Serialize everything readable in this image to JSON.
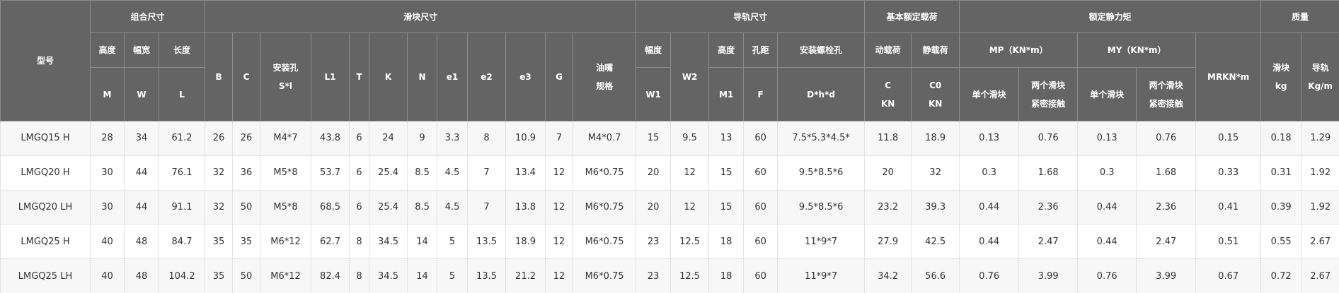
{
  "header": {
    "row1": [
      "型号",
      "组合尺寸",
      "滑块尺寸",
      "导轨尺寸",
      "基本额定载荷",
      "额定静力矩",
      "质量"
    ],
    "row2": [
      "高度",
      "幅宽",
      "长度",
      "B",
      "C",
      "安装孔",
      "S*l",
      "L1",
      "T",
      "K",
      "N",
      "e1",
      "e2",
      "e3",
      "G",
      "油嘴",
      "规格",
      "幅度",
      "W2",
      "高度",
      "孔距",
      "安装螺栓孔",
      "动载荷",
      "静载荷",
      "MP（KN*m）",
      "MY（KN*m）",
      "MRKN*m",
      "滑块",
      "kg",
      "导轨",
      "Kg/m"
    ],
    "row3": [
      "M",
      "W",
      "L",
      "W1",
      "M1",
      "F",
      "D*h*d",
      "C",
      "KN",
      "C0",
      "KN",
      "单个滑块",
      "两个滑块",
      "紧密接触",
      "单个滑块",
      "两个滑块",
      "紧密接触"
    ]
  },
  "table": {
    "rows": [
      [
        "LMGQ15 H",
        "28",
        "34",
        "61.2",
        "26",
        "26",
        "M4*7",
        "43.8",
        "6",
        "24",
        "9",
        "3.3",
        "8",
        "10.9",
        "7",
        "M4*0.7",
        "15",
        "9.5",
        "13",
        "60",
        "7.5*5.3*4.5*",
        "11.8",
        "18.9",
        "0.13",
        "0.76",
        "0.13",
        "0.76",
        "0.15",
        "0.18",
        "1.29"
      ],
      [
        "LMGQ20 H",
        "30",
        "44",
        "76.1",
        "32",
        "36",
        "M5*8",
        "53.7",
        "6",
        "25.4",
        "8.5",
        "4.5",
        "7",
        "13.4",
        "12",
        "M6*0.75",
        "20",
        "12",
        "15",
        "60",
        "9.5*8.5*6",
        "20",
        "32",
        "0.3",
        "1.68",
        "0.3",
        "1.68",
        "0.33",
        "0.31",
        "1.92"
      ],
      [
        "LMGQ20 LH",
        "30",
        "44",
        "91.1",
        "32",
        "50",
        "M5*8",
        "68.5",
        "6",
        "25.4",
        "8.5",
        "4.5",
        "7",
        "13.8",
        "12",
        "M6*0.75",
        "20",
        "12",
        "15",
        "60",
        "9.5*8.5*6",
        "23.2",
        "39.3",
        "0.44",
        "2.36",
        "0.44",
        "2.36",
        "0.41",
        "0.39",
        "1.92"
      ],
      [
        "LMGQ25 H",
        "40",
        "48",
        "84.7",
        "35",
        "35",
        "M6*12",
        "62.7",
        "8",
        "34.5",
        "14",
        "5",
        "13.5",
        "18.9",
        "12",
        "M6*0.75",
        "23",
        "12.5",
        "18",
        "60",
        "11*9*7",
        "27.9",
        "42.5",
        "0.44",
        "2.47",
        "0.44",
        "2.47",
        "0.51",
        "0.55",
        "2.67"
      ],
      [
        "LMGQ25 LH",
        "40",
        "48",
        "104.2",
        "35",
        "50",
        "M6*12",
        "82.4",
        "8",
        "34.5",
        "14",
        "5",
        "13.5",
        "21.2",
        "12",
        "M6*0.75",
        "23",
        "12.5",
        "18",
        "60",
        "11*9*7",
        "34.2",
        "56.6",
        "0.76",
        "3.99",
        "0.76",
        "3.99",
        "0.67",
        "0.72",
        "2.67"
      ]
    ]
  }
}
